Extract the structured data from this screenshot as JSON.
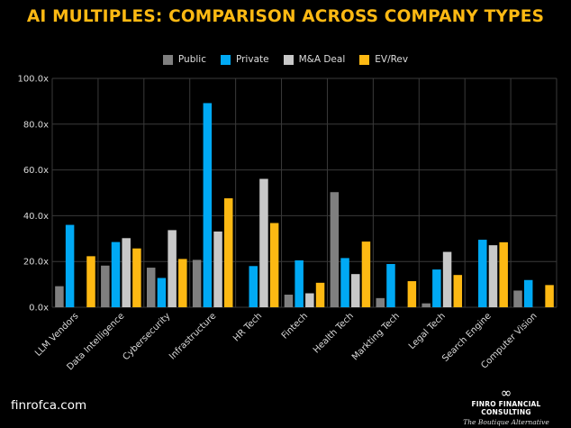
{
  "title": "AI MULTIPLES: COMPARISON ACROSS COMPANY TYPES",
  "footer": {
    "website": "finrofca.com",
    "brand_name": "FINRO FINANCIAL CONSULTING",
    "brand_tagline": "The Boutique Alternative",
    "logo_icon": "infinity-icon"
  },
  "colors": {
    "background": "#000000",
    "title": "#FDB913",
    "grid": "#3a3a3a",
    "axis_text": "#d9d9d9"
  },
  "chart_data": {
    "type": "bar",
    "title": "AI MULTIPLES: COMPARISON ACROSS COMPANY TYPES",
    "xlabel": "",
    "ylabel": "",
    "ylim": [
      0,
      100
    ],
    "y_ticks": [
      0,
      20,
      40,
      60,
      80,
      100
    ],
    "y_tick_labels": [
      "0.0x",
      "20.0x",
      "40.0x",
      "60.0x",
      "80.0x",
      "100.0x"
    ],
    "grid": true,
    "legend_position": "top-center",
    "categories": [
      "LLM Vendors",
      "Data Intelligence",
      "Cybersecurity",
      "Infrastructure",
      "HR Tech",
      "Fintech",
      "Health Tech",
      "Markting Tech",
      "Legal Tech",
      "Search Engine",
      "Computer Vision"
    ],
    "series": [
      {
        "name": "Public",
        "color": "#7F7F7F",
        "values": [
          9.2,
          18.2,
          17.3,
          20.7,
          0,
          5.5,
          50.3,
          4.0,
          1.7,
          0,
          7.3
        ]
      },
      {
        "name": "Private",
        "color": "#00A9F4",
        "values": [
          36.0,
          28.5,
          12.8,
          89.2,
          18.0,
          20.5,
          21.5,
          18.9,
          16.5,
          29.5,
          11.9
        ]
      },
      {
        "name": "M&A Deal",
        "color": "#C8C8C8",
        "values": [
          0,
          30.2,
          33.7,
          33.1,
          56.1,
          6.1,
          14.5,
          0,
          24.2,
          27.1,
          0
        ]
      },
      {
        "name": "EV/Rev",
        "color": "#FDB913",
        "values": [
          22.3,
          25.7,
          21.1,
          47.6,
          36.8,
          10.7,
          28.7,
          11.4,
          14.1,
          28.4,
          9.7
        ]
      }
    ]
  }
}
